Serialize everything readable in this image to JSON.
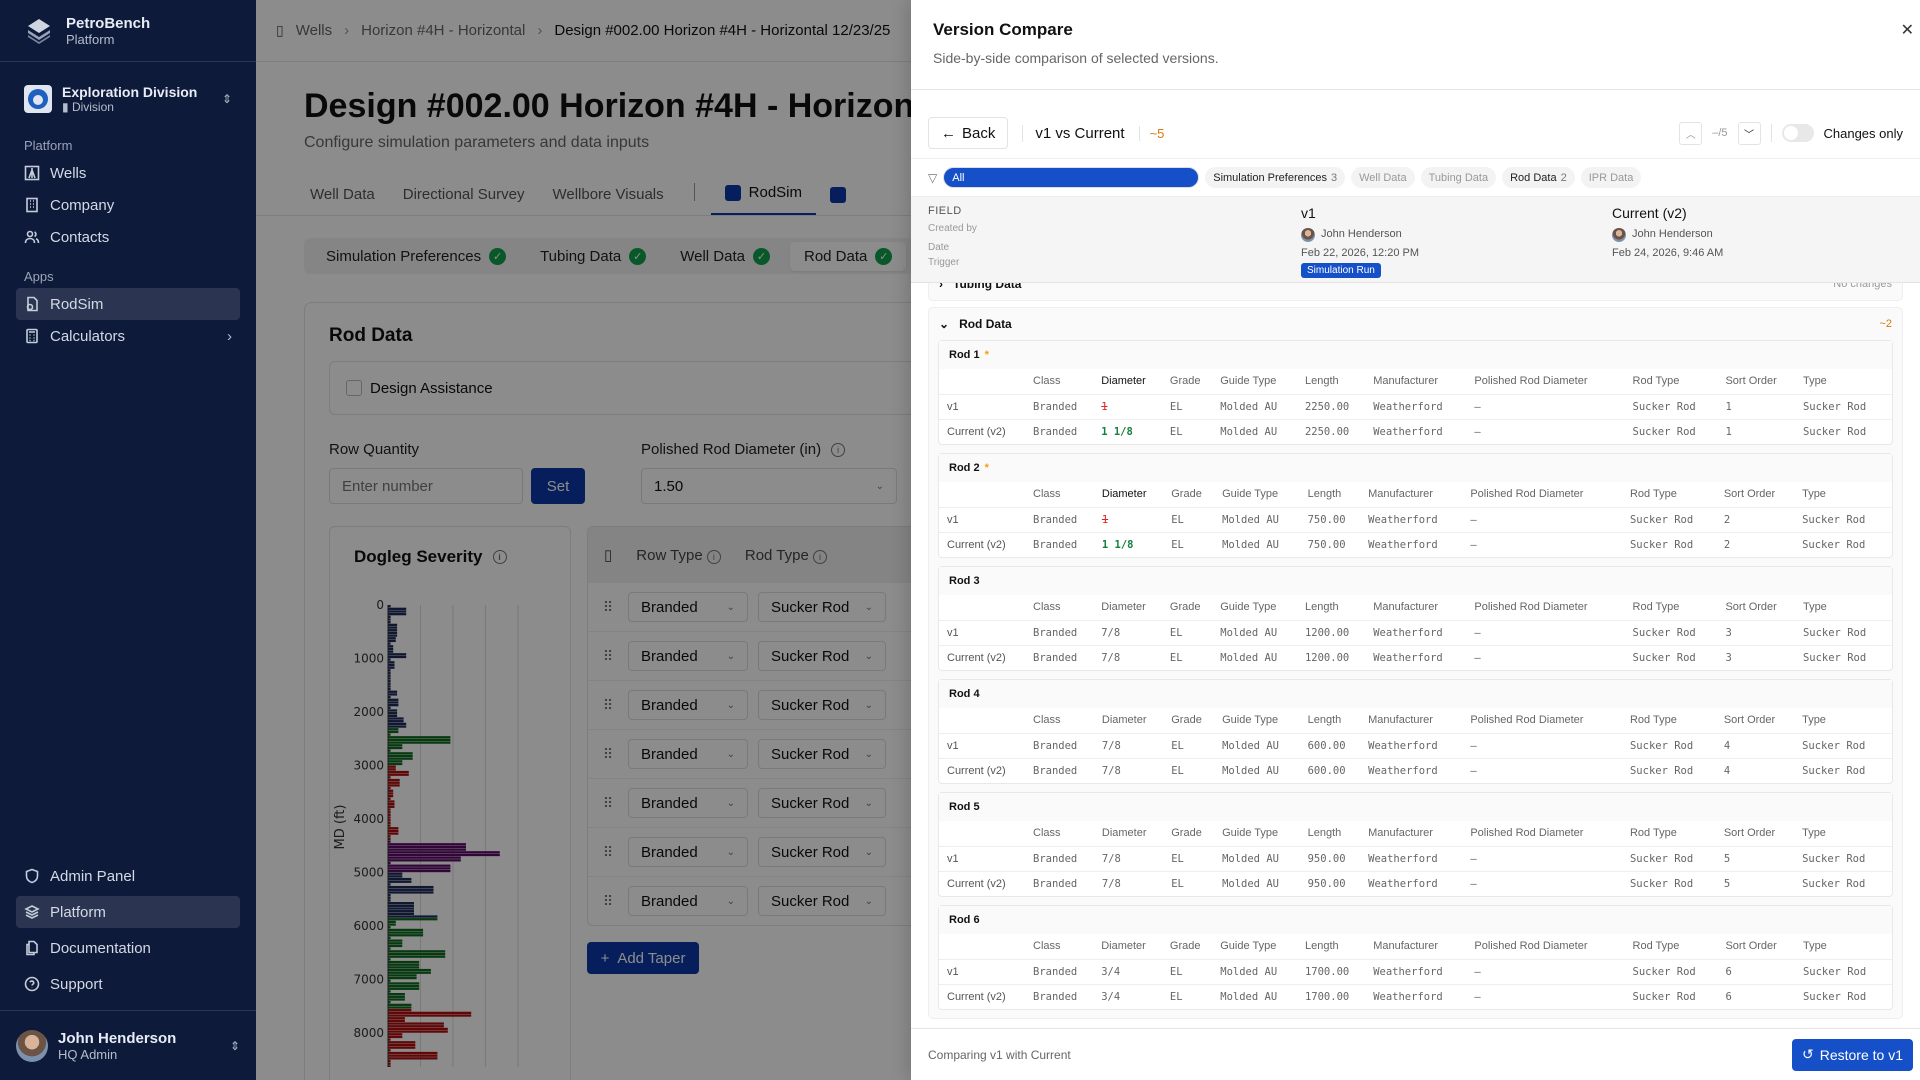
{
  "sidebar": {
    "brand": {
      "name": "PetroBench",
      "sub": "Platform"
    },
    "org": {
      "name": "Exploration Division",
      "sub": "Division"
    },
    "sections": [
      {
        "label": "Platform",
        "items": [
          {
            "label": "Wells",
            "icon": "oil-rig-icon"
          },
          {
            "label": "Company",
            "icon": "building-icon"
          },
          {
            "label": "Contacts",
            "icon": "users-icon"
          }
        ]
      },
      {
        "label": "Apps",
        "items": [
          {
            "label": "RodSim",
            "icon": "rodsim-icon",
            "active": true
          },
          {
            "label": "Calculators",
            "icon": "calculator-icon"
          }
        ]
      }
    ],
    "bottom": [
      {
        "label": "Admin Panel",
        "icon": "shield-icon"
      },
      {
        "label": "Platform",
        "icon": "layers-icon",
        "active": true
      },
      {
        "label": "Documentation",
        "icon": "docs-icon"
      },
      {
        "label": "Support",
        "icon": "help-icon"
      }
    ],
    "user": {
      "name": "John Henderson",
      "role": "HQ Admin"
    }
  },
  "breadcrumb": [
    "Wells",
    "Horizon #4H - Horizontal",
    "Design #002.00 Horizon #4H - Horizontal 12/23/25"
  ],
  "page": {
    "title": "Design #002.00 Horizon #4H - Horizontal 12/23/25",
    "subtitle": "Configure simulation parameters and data inputs",
    "tabs": [
      "Well Data",
      "Directional Survey",
      "Wellbore Visuals",
      "RodSim"
    ],
    "active_tab": "RodSim",
    "steps": [
      "Simulation Preferences",
      "Tubing Data",
      "Well Data",
      "Rod Data"
    ],
    "active_step": "Rod Data"
  },
  "rod_data": {
    "title": "Rod Data",
    "design_assistance": "Design Assistance",
    "row_quantity_label": "Row Quantity",
    "row_quantity_placeholder": "Enter number",
    "set_label": "Set",
    "polished_label": "Polished Rod Diameter (in)",
    "polished_value": "1.50",
    "chart_title": "Dogleg Severity",
    "table_headers": [
      "Row Type",
      "Rod Type"
    ],
    "rows": [
      {
        "row_type": "Branded",
        "rod_type": "Sucker Rod"
      },
      {
        "row_type": "Branded",
        "rod_type": "Sucker Rod"
      },
      {
        "row_type": "Branded",
        "rod_type": "Sucker Rod"
      },
      {
        "row_type": "Branded",
        "rod_type": "Sucker Rod"
      },
      {
        "row_type": "Branded",
        "rod_type": "Sucker Rod"
      },
      {
        "row_type": "Branded",
        "rod_type": "Sucker Rod"
      },
      {
        "row_type": "Branded",
        "rod_type": "Sucker Rod"
      }
    ],
    "add_taper": "Add Taper"
  },
  "chart_data": {
    "type": "bar",
    "title": "Dogleg Severity",
    "ylabel": "MD (ft)",
    "y_ticks": [
      0,
      1000,
      2000,
      3000,
      4000,
      5000,
      6000,
      7000,
      8000
    ],
    "orientation": "horizontal",
    "segments": [
      {
        "from": 0,
        "to": 2300,
        "color": "#1c2b5a"
      },
      {
        "from": 2300,
        "to": 3000,
        "color": "#0f6b1f"
      },
      {
        "from": 3000,
        "to": 4400,
        "color": "#b00e0e"
      },
      {
        "from": 4400,
        "to": 5000,
        "color": "#5e0b6b"
      },
      {
        "from": 5000,
        "to": 5850,
        "color": "#1c2b5a"
      },
      {
        "from": 5850,
        "to": 7550,
        "color": "#0f6b1f"
      },
      {
        "from": 7550,
        "to": 8700,
        "color": "#b00e0e"
      }
    ],
    "bars": [
      {
        "md": 100,
        "v": 0.7
      },
      {
        "md": 200,
        "v": 0.1
      },
      {
        "md": 400,
        "v": 0.35
      },
      {
        "md": 500,
        "v": 0.35
      },
      {
        "md": 600,
        "v": 0.3
      },
      {
        "md": 800,
        "v": 0.2
      },
      {
        "md": 900,
        "v": 0.7
      },
      {
        "md": 1100,
        "v": 0.25
      },
      {
        "md": 1500,
        "v": 0.1
      },
      {
        "md": 1600,
        "v": 0.35
      },
      {
        "md": 1800,
        "v": 0.4
      },
      {
        "md": 2000,
        "v": 0.35
      },
      {
        "md": 2100,
        "v": 0.6
      },
      {
        "md": 2200,
        "v": 0.7
      },
      {
        "md": 2300,
        "v": 0.4
      },
      {
        "md": 2500,
        "v": 2.4
      },
      {
        "md": 2600,
        "v": 0.55
      },
      {
        "md": 2800,
        "v": 0.95
      },
      {
        "md": 2900,
        "v": 0.55
      },
      {
        "md": 3000,
        "v": 0.3
      },
      {
        "md": 3100,
        "v": 0.8
      },
      {
        "md": 3300,
        "v": 0.45
      },
      {
        "md": 3500,
        "v": 0.2
      },
      {
        "md": 3700,
        "v": 0.25
      },
      {
        "md": 4200,
        "v": 0.4
      },
      {
        "md": 4500,
        "v": 3.0
      },
      {
        "md": 4600,
        "v": 4.3
      },
      {
        "md": 4700,
        "v": 2.8
      },
      {
        "md": 4900,
        "v": 2.4
      },
      {
        "md": 5000,
        "v": 0.55
      },
      {
        "md": 5100,
        "v": 0.9
      },
      {
        "md": 5300,
        "v": 1.75
      },
      {
        "md": 5600,
        "v": 1.0
      },
      {
        "md": 5700,
        "v": 1.0
      },
      {
        "md": 5800,
        "v": 1.9
      },
      {
        "md": 5900,
        "v": 0.3
      },
      {
        "md": 6100,
        "v": 1.35
      },
      {
        "md": 6300,
        "v": 0.55
      },
      {
        "md": 6500,
        "v": 2.2
      },
      {
        "md": 6700,
        "v": 1.2
      },
      {
        "md": 6800,
        "v": 1.65
      },
      {
        "md": 6900,
        "v": 1.1
      },
      {
        "md": 7100,
        "v": 1.2
      },
      {
        "md": 7300,
        "v": 0.65
      },
      {
        "md": 7500,
        "v": 0.9
      },
      {
        "md": 7600,
        "v": 3.2
      },
      {
        "md": 7700,
        "v": 0.65
      },
      {
        "md": 7800,
        "v": 2.15
      },
      {
        "md": 7900,
        "v": 2.3
      },
      {
        "md": 8000,
        "v": 0.55
      },
      {
        "md": 8200,
        "v": 1.05
      },
      {
        "md": 8400,
        "v": 1.9
      }
    ]
  },
  "drawer": {
    "title": "Version Compare",
    "subtitle": "Side-by-side comparison of selected versions.",
    "back": "Back",
    "comparison": "v1 vs Current",
    "change_count": "~5",
    "pager": "–/5",
    "changes_only": "Changes only",
    "filters": [
      {
        "label": "All",
        "selected": true
      },
      {
        "label": "Simulation Preferences",
        "count": "3"
      },
      {
        "label": "Well Data"
      },
      {
        "label": "Tubing Data"
      },
      {
        "label": "Rod Data",
        "count": "2"
      },
      {
        "label": "IPR Data"
      }
    ],
    "meta": {
      "field_header": "FIELD",
      "labels": [
        "Created by",
        "Date",
        "Trigger"
      ],
      "v1": {
        "title": "v1",
        "created_by": "John Henderson",
        "date": "Feb 22, 2026, 12:20 PM",
        "trigger": "Simulation Run"
      },
      "current": {
        "title": "Current (v2)",
        "created_by": "John Henderson",
        "date": "Feb 24, 2026, 9:46 AM"
      }
    },
    "sections": [
      {
        "title": "Tubing Data",
        "status": "No changes"
      },
      {
        "title": "Rod Data",
        "status": "~2"
      }
    ],
    "columns": [
      "Class",
      "Diameter",
      "Grade",
      "Guide Type",
      "Length",
      "Manufacturer",
      "Polished Rod Diameter",
      "Rod Type",
      "Sort Order",
      "Type"
    ],
    "row_labels": [
      "v1",
      "Current (v2)"
    ],
    "rods": [
      {
        "title": "Rod 1",
        "changed": true,
        "v1": [
          "Branded",
          "1",
          "EL",
          "Molded AU",
          "2250.00",
          "Weatherford",
          "–",
          "Sucker Rod",
          "1",
          "Sucker Rod"
        ],
        "v2": [
          "Branded",
          "1 1/8",
          "EL",
          "Molded AU",
          "2250.00",
          "Weatherford",
          "–",
          "Sucker Rod",
          "1",
          "Sucker Rod"
        ]
      },
      {
        "title": "Rod 2",
        "changed": true,
        "v1": [
          "Branded",
          "1",
          "EL",
          "Molded AU",
          "750.00",
          "Weatherford",
          "–",
          "Sucker Rod",
          "2",
          "Sucker Rod"
        ],
        "v2": [
          "Branded",
          "1 1/8",
          "EL",
          "Molded AU",
          "750.00",
          "Weatherford",
          "–",
          "Sucker Rod",
          "2",
          "Sucker Rod"
        ]
      },
      {
        "title": "Rod 3",
        "changed": false,
        "v1": [
          "Branded",
          "7/8",
          "EL",
          "Molded AU",
          "1200.00",
          "Weatherford",
          "–",
          "Sucker Rod",
          "3",
          "Sucker Rod"
        ],
        "v2": [
          "Branded",
          "7/8",
          "EL",
          "Molded AU",
          "1200.00",
          "Weatherford",
          "–",
          "Sucker Rod",
          "3",
          "Sucker Rod"
        ]
      },
      {
        "title": "Rod 4",
        "changed": false,
        "v1": [
          "Branded",
          "7/8",
          "EL",
          "Molded AU",
          "600.00",
          "Weatherford",
          "–",
          "Sucker Rod",
          "4",
          "Sucker Rod"
        ],
        "v2": [
          "Branded",
          "7/8",
          "EL",
          "Molded AU",
          "600.00",
          "Weatherford",
          "–",
          "Sucker Rod",
          "4",
          "Sucker Rod"
        ]
      },
      {
        "title": "Rod 5",
        "changed": false,
        "v1": [
          "Branded",
          "7/8",
          "EL",
          "Molded AU",
          "950.00",
          "Weatherford",
          "–",
          "Sucker Rod",
          "5",
          "Sucker Rod"
        ],
        "v2": [
          "Branded",
          "7/8",
          "EL",
          "Molded AU",
          "950.00",
          "Weatherford",
          "–",
          "Sucker Rod",
          "5",
          "Sucker Rod"
        ]
      },
      {
        "title": "Rod 6",
        "changed": false,
        "v1": [
          "Branded",
          "3/4",
          "EL",
          "Molded AU",
          "1700.00",
          "Weatherford",
          "–",
          "Sucker Rod",
          "6",
          "Sucker Rod"
        ],
        "v2": [
          "Branded",
          "3/4",
          "EL",
          "Molded AU",
          "1700.00",
          "Weatherford",
          "–",
          "Sucker Rod",
          "6",
          "Sucker Rod"
        ]
      }
    ],
    "footer_text": "Comparing v1 with Current",
    "restore": "Restore to v1"
  }
}
